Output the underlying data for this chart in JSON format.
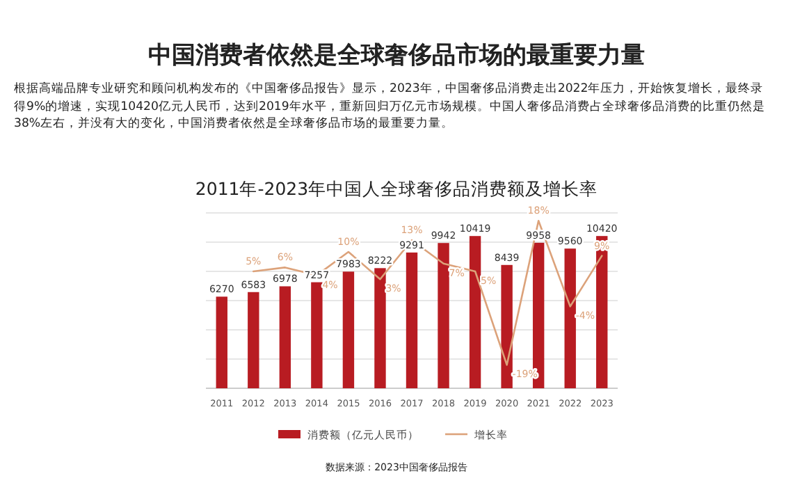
{
  "chart_data": {
    "type": "bar",
    "title": "中国消费者依然是全球奢侈品市场的最重要力量",
    "subtitle": "2011年-2023年中国人全球奢侈品消费额及增长率",
    "annotations": [
      "根据高端品牌专业研究和顾问机构发布的《中国奢侈品报告》显示，2023年，中国奢侈品消费走出2022年压力，开始恢复增长，最终录得9%的增速，实现10420亿元人民币，达到2019年水平，重新回归万亿元市场规模。中国人奢侈品消费占全球奢侈品消费的比重仍然是38%左右，并没有大的变化，中国消费者依然是全球奢侈品市场的最重要力量。",
      "数据来源：2023中国奢侈品报告"
    ],
    "categories": [
      "2011",
      "2012",
      "2013",
      "2014",
      "2015",
      "2016",
      "2017",
      "2018",
      "2019",
      "2020",
      "2021",
      "2022",
      "2023"
    ],
    "series": [
      {
        "name": "消费额（亿元人民币）",
        "color": "#b81c22",
        "values": [
          6270,
          6583,
          6978,
          7257,
          7983,
          8222,
          9291,
          9942,
          10419,
          8439,
          9958,
          9560,
          10420
        ]
      },
      {
        "name": "增长率",
        "type": "line",
        "axis": "y2",
        "color": "#dca27a",
        "values": [
          null,
          5,
          6,
          4,
          10,
          3,
          13,
          7,
          5,
          -19,
          18,
          -4,
          9
        ],
        "value_labels": [
          null,
          "5%",
          "6%",
          "4%",
          "10%",
          "3%",
          "13%",
          "7%",
          "5%",
          "-19%",
          "18%",
          "-4%",
          "9%"
        ]
      }
    ],
    "ylim": [
      0,
      12000
    ],
    "yticks": [
      {
        "value": 0,
        "label": null
      },
      {
        "value": 2000,
        "label": null
      },
      {
        "value": 4000,
        "label": null
      },
      {
        "value": 6000,
        "label": null
      },
      {
        "value": 8000,
        "label": null
      },
      {
        "value": 10000,
        "label": null
      },
      {
        "value": 12000,
        "label": null
      }
    ],
    "y2lim": [
      -25,
      20
    ],
    "grid": "y",
    "legend": "bottom",
    "data_labels": true
  }
}
